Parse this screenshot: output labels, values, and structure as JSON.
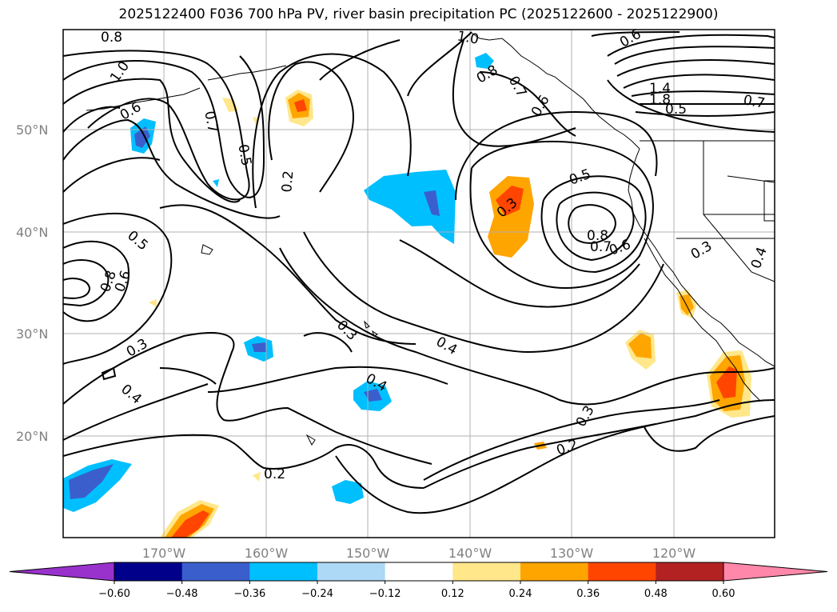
{
  "title": "2025122400 F036 700 hPa PV, river basin precipitation PC (2025122600 - 2025122900)",
  "lat_labels": [
    "50°N",
    "40°N",
    "30°N",
    "20°N"
  ],
  "lon_labels": [
    "170°W",
    "160°W",
    "150°W",
    "140°W",
    "130°W",
    "120°W"
  ],
  "colorbar": {
    "ticks": [
      "−0.60",
      "−0.48",
      "−0.36",
      "−0.24",
      "−0.12",
      "0.12",
      "0.24",
      "0.36",
      "0.48",
      "0.60"
    ],
    "colors": [
      "#9932cc",
      "#00008b",
      "#3a5fcd",
      "#00bfff",
      "#add8f6",
      "#ffffff",
      "#ffe78a",
      "#ffa500",
      "#ff4500",
      "#b22222",
      "#ff88aa"
    ]
  },
  "contour_labels": {
    "c08_tl": "0.8",
    "c10_tl": "1.0",
    "c06_tl": "0.6",
    "c07_a": "0.7",
    "c05_a": "0.5",
    "c02_a": "0.2",
    "c10_top": "1.0",
    "c06_top": "0.6",
    "c08_b": "0.8",
    "c07_b": "0.7",
    "c06_b": "0.6",
    "c14": "1.4",
    "c18": "1.8",
    "c05_ne": "0.5",
    "c07_ne": "0.7",
    "c03_c": "0.3",
    "c05_c": "0.5",
    "c08_c": "0.8",
    "c07_c": "0.7",
    "c06_c": "0.6",
    "c03_e": "0.3",
    "c04_e": "0.4",
    "c05_w": "0.5",
    "c08_w": "0.8",
    "c06_w": "0.6",
    "c03_w": "0.3",
    "c04_w": "0.4",
    "c03_m": "0.3",
    "c04_m": "0.4",
    "c04_s": "0.4",
    "c03_s": "0.3",
    "c02_s": "0.2",
    "c02_sw": "0.2"
  }
}
